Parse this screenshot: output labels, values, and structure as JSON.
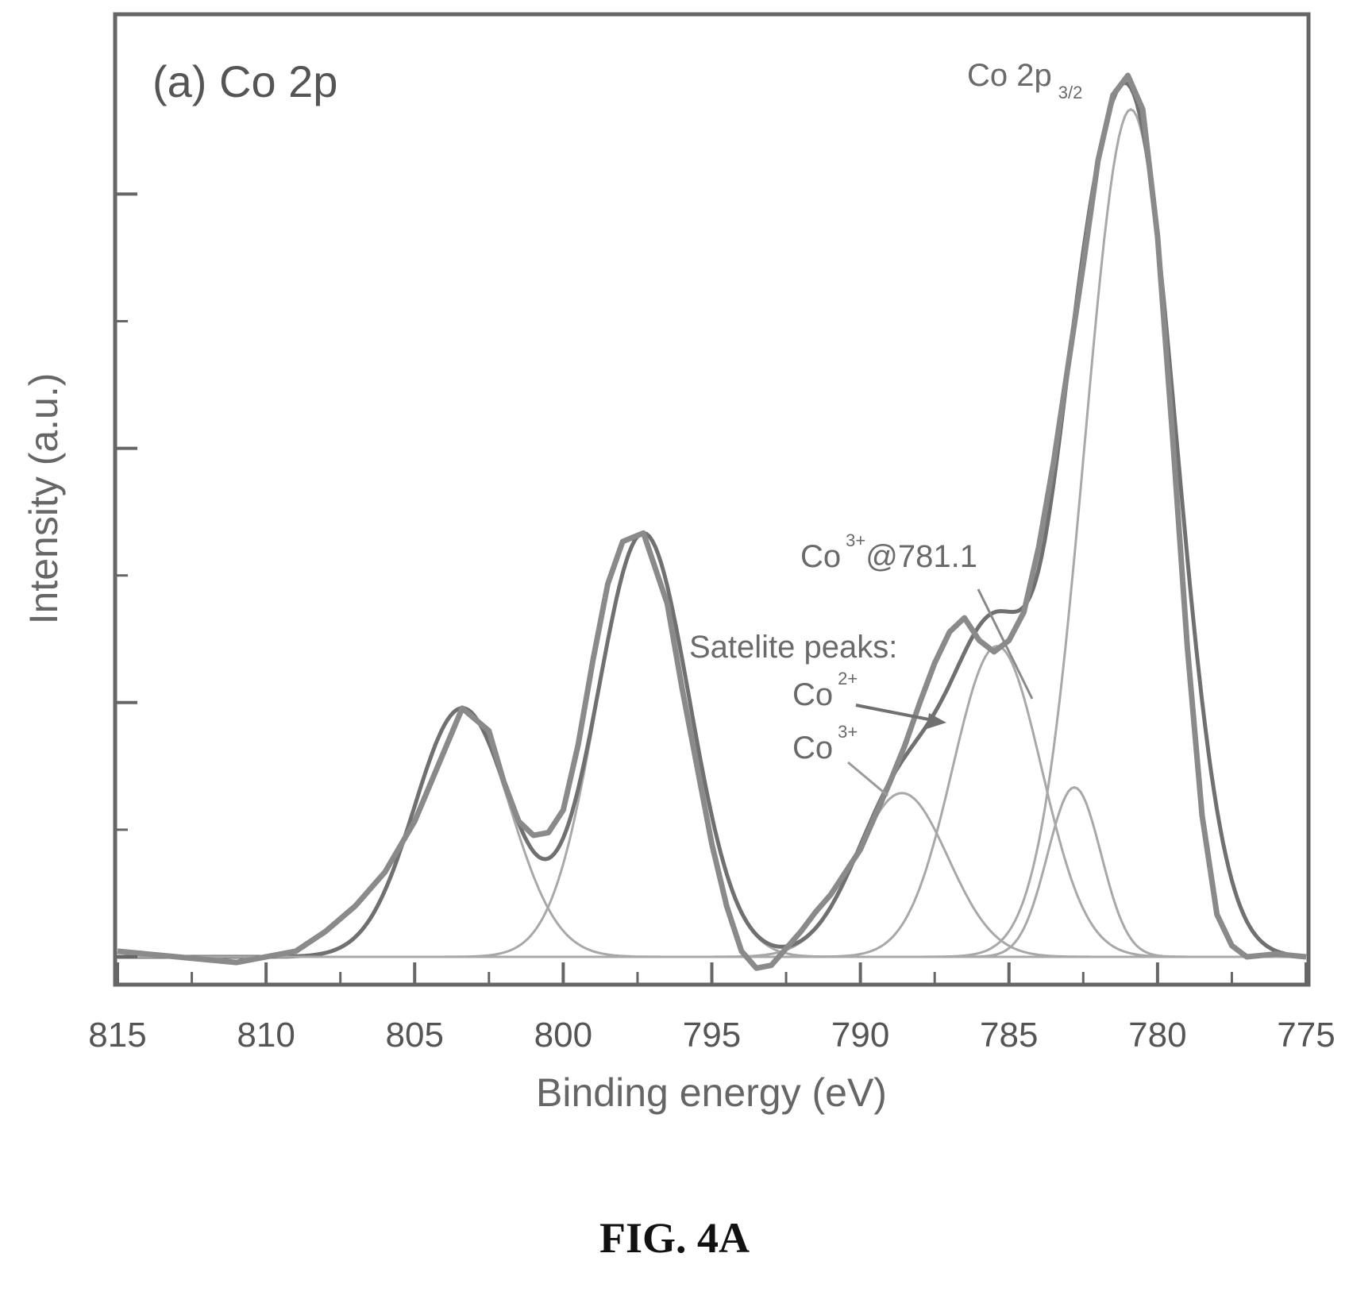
{
  "figure_label": "FIG. 4A",
  "chart_data": {
    "type": "line",
    "panel_label": "(a) Co 2p",
    "xlabel": "Binding energy (eV)",
    "ylabel": "Intensity (a.u.)",
    "xlim": [
      815,
      775
    ],
    "x_reversed": true,
    "ylim": [
      -0.06,
      3.2
    ],
    "xticks": [
      815,
      810,
      805,
      800,
      795,
      790,
      785,
      780,
      775
    ],
    "y_tick_labels_shown": false,
    "grid": false,
    "legend": "none",
    "baseline": 0,
    "components": [
      {
        "center": 780.9,
        "amplitude": 3.0,
        "sigma": 1.55
      },
      {
        "center": 782.8,
        "amplitude": 0.6,
        "sigma": 0.9
      },
      {
        "center": 785.4,
        "amplitude": 1.1,
        "sigma": 1.5
      },
      {
        "center": 788.6,
        "amplitude": 0.58,
        "sigma": 1.55
      },
      {
        "center": 797.3,
        "amplitude": 1.5,
        "sigma": 1.55
      },
      {
        "center": 803.4,
        "amplitude": 0.88,
        "sigma": 1.6
      }
    ],
    "series": [
      {
        "x": [
          815,
          813,
          811,
          810,
          809,
          808,
          807,
          806,
          805,
          804,
          803.4,
          802.5,
          802,
          801.5,
          801,
          800.5,
          800,
          799.5,
          799,
          798.5,
          798,
          797.3,
          796.5,
          796,
          795,
          794.5,
          794,
          793.5,
          793,
          792.5,
          792,
          791.5,
          791,
          790,
          789,
          788.5,
          788,
          787.5,
          787,
          786.5,
          786,
          785.5,
          785,
          784.5,
          784,
          783.5,
          783,
          782.5,
          782,
          781.5,
          781,
          780.5,
          780,
          779.5,
          779,
          778.5,
          778,
          777.5,
          777,
          776,
          775
        ],
        "y": [
          0.02,
          0.0,
          -0.02,
          0.0,
          0.02,
          0.09,
          0.18,
          0.3,
          0.48,
          0.73,
          0.88,
          0.8,
          0.62,
          0.48,
          0.43,
          0.44,
          0.52,
          0.75,
          1.05,
          1.32,
          1.47,
          1.5,
          1.25,
          0.95,
          0.4,
          0.18,
          0.02,
          -0.04,
          -0.03,
          0.03,
          0.09,
          0.16,
          0.22,
          0.38,
          0.62,
          0.75,
          0.9,
          1.04,
          1.15,
          1.2,
          1.12,
          1.08,
          1.12,
          1.22,
          1.45,
          1.75,
          2.1,
          2.45,
          2.82,
          3.05,
          3.12,
          3.0,
          2.55,
          1.85,
          1.1,
          0.5,
          0.15,
          0.04,
          0.0,
          0.01,
          0.0
        ]
      }
    ],
    "annotations": [
      {
        "text": "Co 2p",
        "subscript": "3/2"
      },
      {
        "text": "Co",
        "superscript": "3+",
        "suffix": "@781.1"
      },
      {
        "text": "Satelite peaks:"
      },
      {
        "text": "Co",
        "superscript": "2+"
      },
      {
        "text": "Co",
        "superscript": "3+"
      }
    ]
  },
  "colors": {
    "data": "#8a8a8a",
    "fit": "#707070",
    "component": "#a8a8a8",
    "axis": "#666666"
  }
}
